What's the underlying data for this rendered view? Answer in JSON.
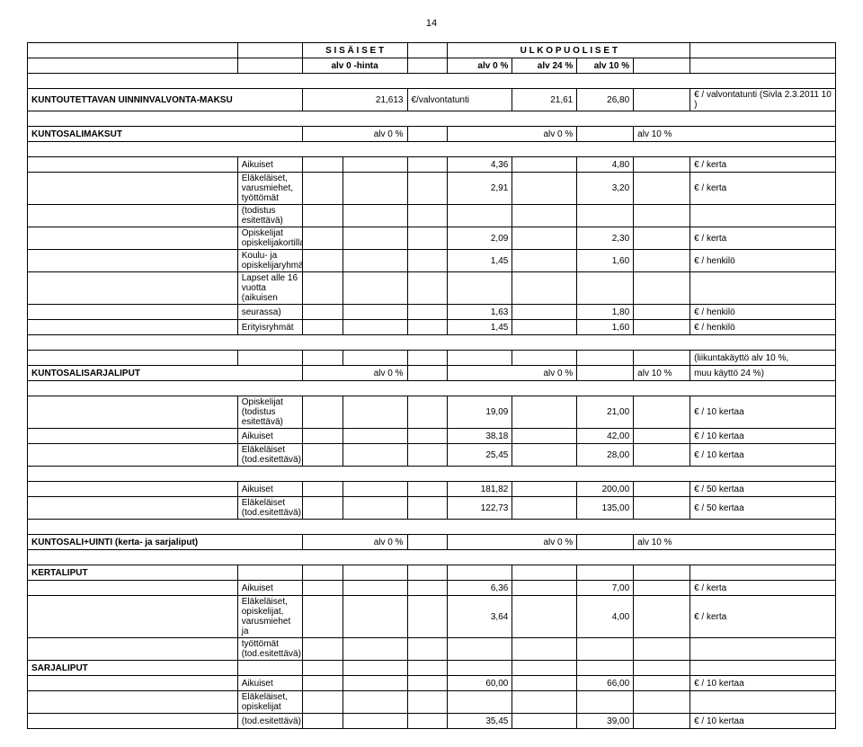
{
  "page_number": "14",
  "header": {
    "sisaiset": "S I S Ä I S E T",
    "ulkopuoliset": "U L K O P U O L I S E T",
    "alv0hinta": "alv 0 -hinta",
    "alv0p": "alv  0 %",
    "alv24p": "alv 24 %",
    "alv10p": "alv 10 %"
  },
  "r1": {
    "label": "KUNTOUTETTAVAN UINNINVALVONTA-MAKSU",
    "v1": "21,613",
    "unit": "€/valvontatunti",
    "v2": "21,61",
    "v3": "26,80",
    "desc": "€ / valvontatunti (Sivla 2.3.2011 10 )"
  },
  "s1": {
    "label": "KUNTOSALIMAKSUT",
    "a": "alv 0 %",
    "b": "alv 0 %",
    "c": "alv  10 %"
  },
  "rows1": {
    "r1l": "Aikuiset",
    "r1a": "4,36",
    "r1b": "4,80",
    "r1u": "€ / kerta",
    "r2l": "Eläkeläiset, varusmiehet, työttömät",
    "r2a": "2,91",
    "r2b": "3,20",
    "r2u": "€ / kerta",
    "r3l": "(todistus esitettävä)",
    "r4l": "Opiskelijat opiskelijakortilla",
    "r4a": "2,09",
    "r4b": "2,30",
    "r4u": "€ / kerta",
    "r5l": "Koulu- ja opiskelijaryhmät",
    "r5a": "1,45",
    "r5b": "1,60",
    "r5u": "€ / henkilö",
    "r6l": "Lapset alle 16 vuotta (aikuisen",
    "r7l": "seurassa)",
    "r7a": "1,63",
    "r7b": "1,80",
    "r7u": "€ / henkilö",
    "r8l": "Erityisryhmät",
    "r8a": "1,45",
    "r8b": "1,60",
    "r8u": "€ / henkilö"
  },
  "s2": {
    "note": "(liikuntakäyttö alv 10 %,",
    "label": "KUNTOSALISARJALIPUT",
    "a": "alv 0 %",
    "b": "alv 0 %",
    "c": "alv  10 %",
    "d": "muu käyttö 24 %)"
  },
  "rows2": {
    "r1l": "Opiskelijat (todistus esitettävä)",
    "r1a": "19,09",
    "r1b": "21,00",
    "r1u": "€ / 10 kertaa",
    "r2l": "Aikuiset",
    "r2a": "38,18",
    "r2b": "42,00",
    "r2u": "€ / 10 kertaa",
    "r3l": "Eläkeläiset (tod.esitettävä)",
    "r3a": "25,45",
    "r3b": "28,00",
    "r3u": "€ / 10 kertaa",
    "r4l": "Aikuiset",
    "r4a": "181,82",
    "r4b": "200,00",
    "r4u": "€ / 50 kertaa",
    "r5l": "Eläkeläiset (tod.esitettävä)",
    "r5a": "122,73",
    "r5b": "135,00",
    "r5u": "€ / 50 kertaa"
  },
  "s3": {
    "label": "KUNTOSALI+UINTI (kerta- ja sarjaliput)",
    "a": "alv 0 %",
    "b": "alv 0 %",
    "c": "alv  10 %"
  },
  "kerta": "KERTALIPUT",
  "sarja": "SARJALIPUT",
  "rows3": {
    "r1l": "Aikuiset",
    "r1a": "6,36",
    "r1b": "7,00",
    "r1u": "€ / kerta",
    "r2l": "Eläkeläiset, opiskelijat, varusmiehet ja",
    "r2a": "3,64",
    "r2b": "4,00",
    "r2u": "€ / kerta",
    "r3l": "työttömät (tod.esitettävä)",
    "r4l": "Aikuiset",
    "r4a": "60,00",
    "r4b": "66,00",
    "r4u": "€ / 10 kertaa",
    "r5l": "Eläkeläiset, opiskelijat",
    "r6l": "(tod.esitettävä)",
    "r6a": "35,45",
    "r6b": "39,00",
    "r6u": "€ / 10 kertaa"
  }
}
